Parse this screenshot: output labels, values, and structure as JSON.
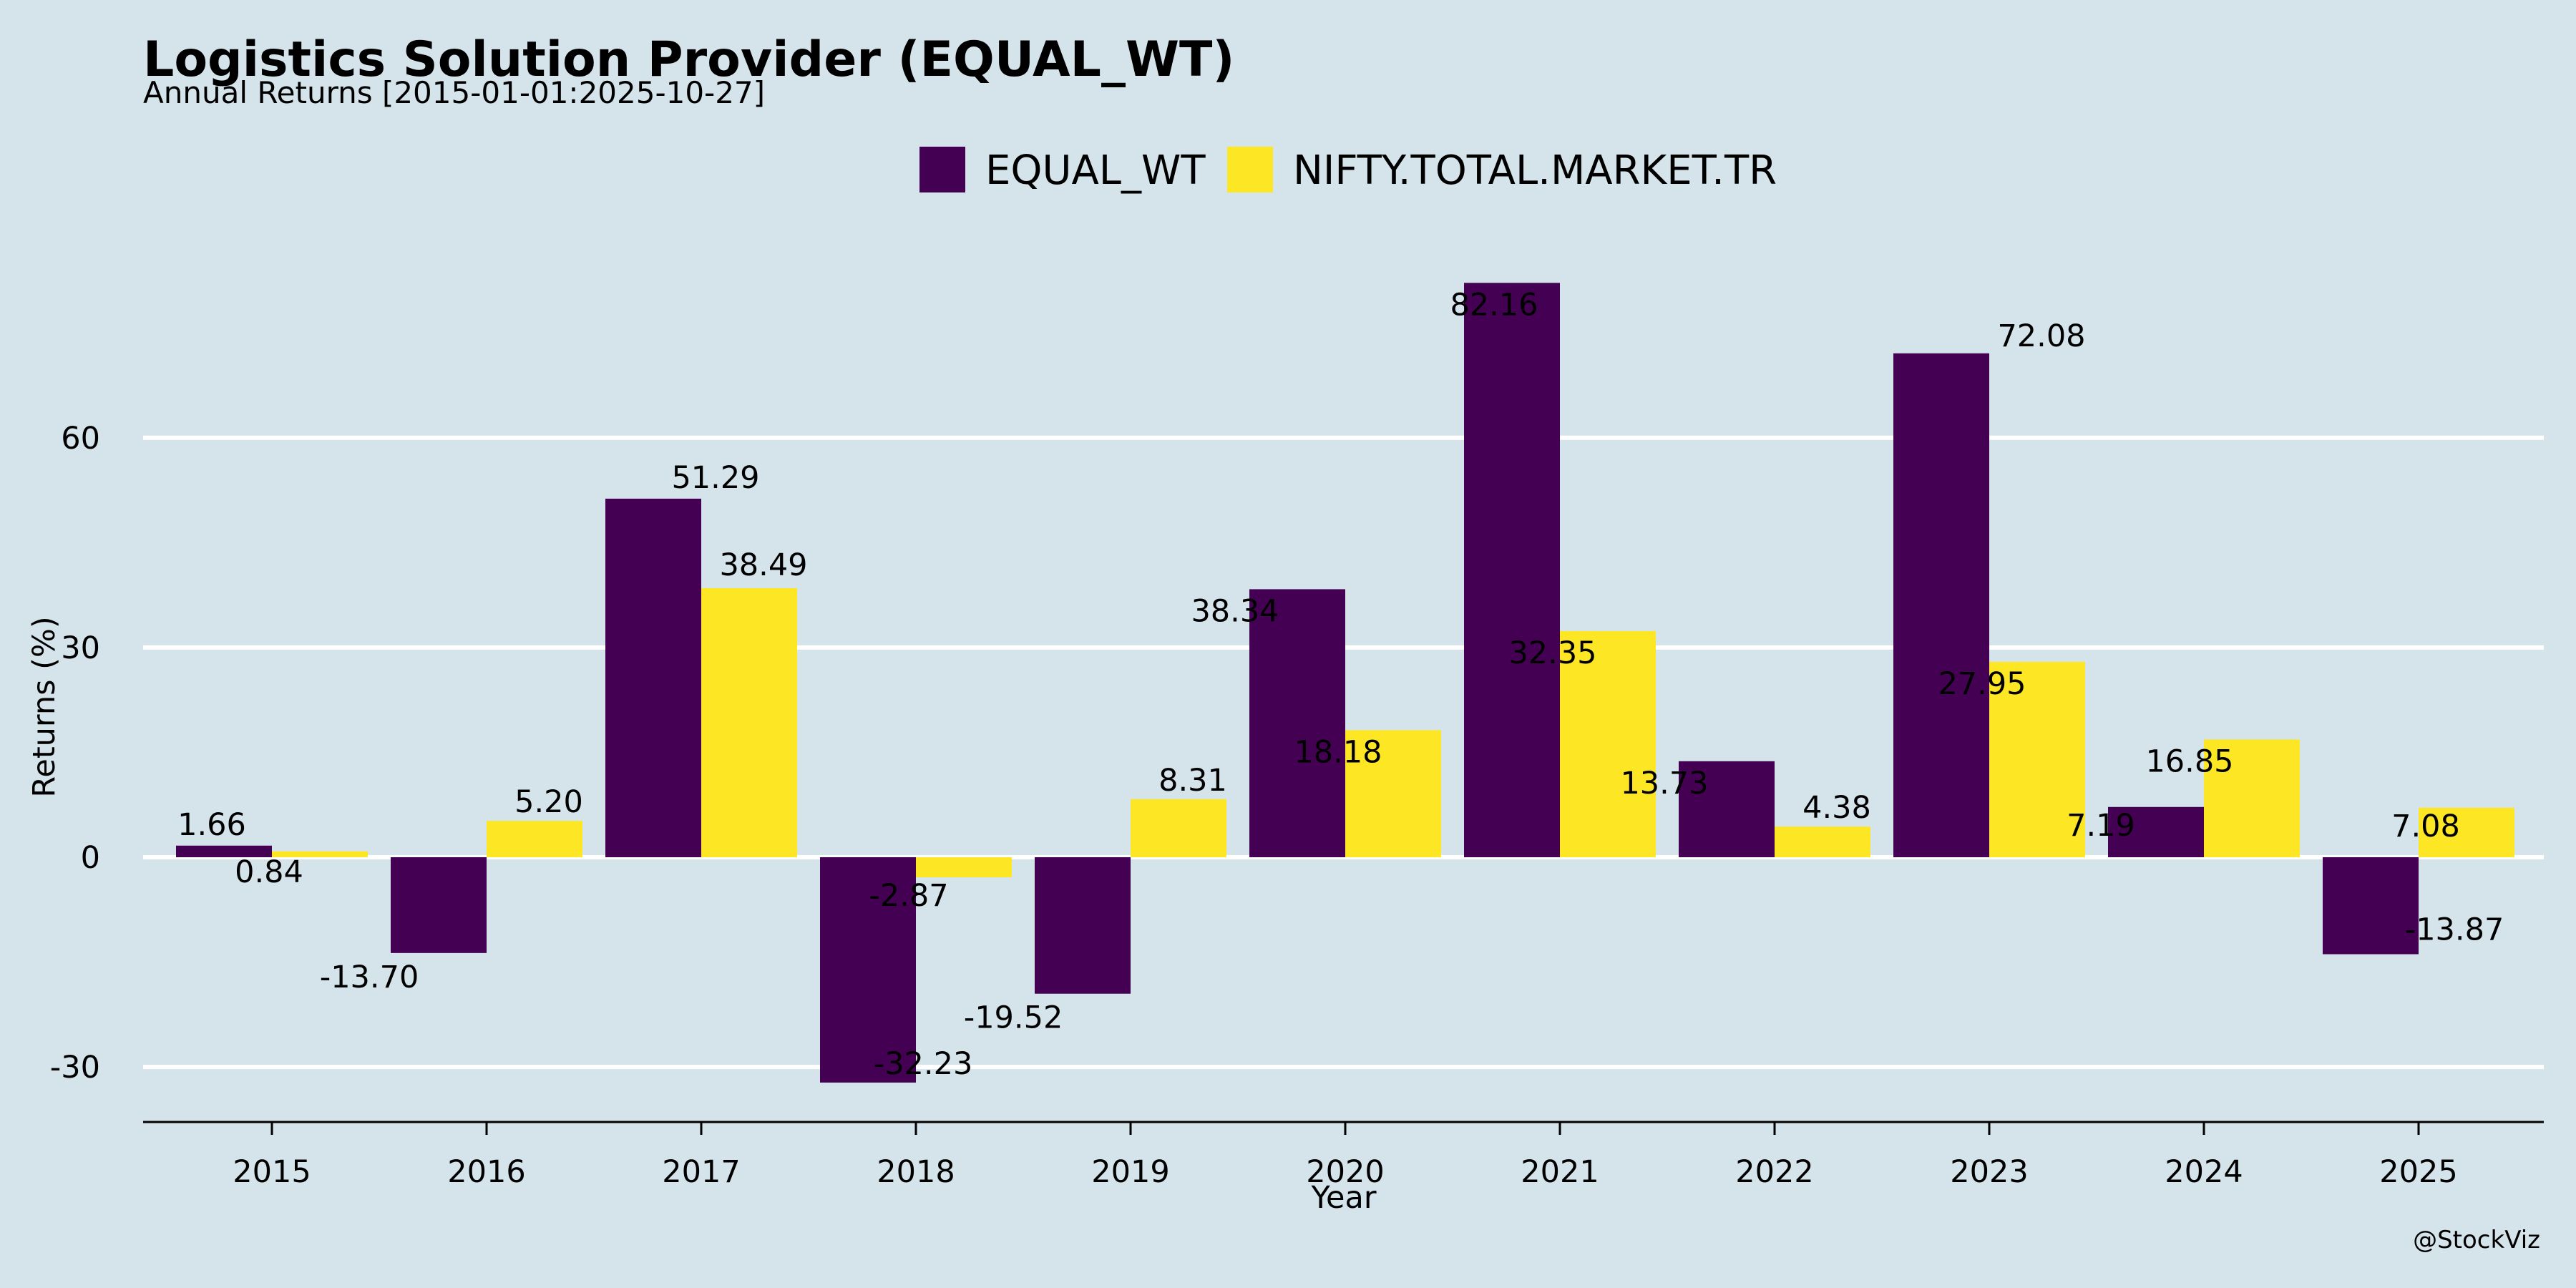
{
  "chart_data": {
    "type": "bar",
    "title": "Logistics Solution Provider (EQUAL_WT)",
    "subtitle": "Annual Returns [2015-01-01:2025-10-27]",
    "xlabel": "Year",
    "ylabel": "Returns (%)",
    "categories": [
      "2015",
      "2016",
      "2017",
      "2018",
      "2019",
      "2020",
      "2021",
      "2022",
      "2023",
      "2024",
      "2025"
    ],
    "series": [
      {
        "name": "EQUAL_WT",
        "color": "#440154",
        "values": [
          1.66,
          -13.7,
          51.29,
          -32.23,
          -19.52,
          38.34,
          82.16,
          13.73,
          72.08,
          7.19,
          -13.87
        ],
        "labels": [
          "1.66",
          "-13.70",
          "51.29",
          "-32.23",
          "-19.52",
          "38.34",
          "82.16",
          "13.73",
          "72.08",
          "7.19",
          "-13.87"
        ]
      },
      {
        "name": "NIFTY.TOTAL.MARKET.TR",
        "color": "#fde725",
        "values": [
          0.84,
          5.2,
          38.49,
          -2.87,
          8.31,
          18.18,
          32.35,
          4.38,
          27.95,
          16.85,
          7.08
        ],
        "labels": [
          "0.84",
          "5.20",
          "38.49",
          "-2.87",
          "8.31",
          "18.18",
          "32.35",
          "4.38",
          "27.95",
          "16.85",
          "7.08"
        ]
      }
    ],
    "yticks": [
      -30,
      0,
      30,
      60
    ],
    "ylim": [
      -38,
      93
    ],
    "grid": "horizontal",
    "legend_position": "top-center",
    "credit": "@StockViz"
  },
  "colors": {
    "background": "#d5e4eb",
    "grid": "#ffffff",
    "axis": "#000000"
  }
}
